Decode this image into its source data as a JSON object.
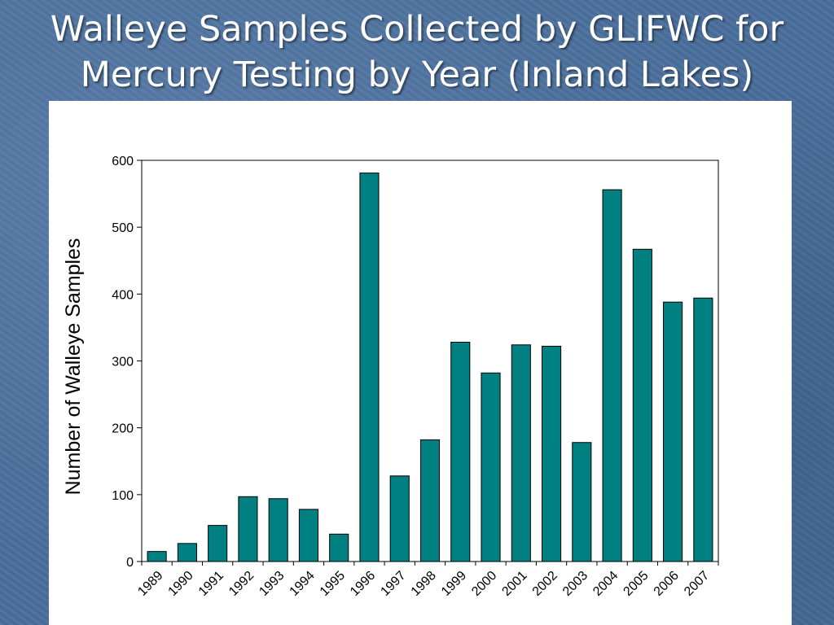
{
  "slide": {
    "title_line1": "Walleye Samples Collected by GLIFWC for",
    "title_line2": "Mercury Testing by Year (Inland Lakes)"
  },
  "chart_data": {
    "type": "bar",
    "title": "Walleye Samples Collected by GLIFWC for Mercury Testing by Year (Inland Lakes)",
    "xlabel": "",
    "ylabel": "Number of Walleye Samples",
    "categories": [
      "1989",
      "1990",
      "1991",
      "1992",
      "1993",
      "1994",
      "1995",
      "1996",
      "1997",
      "1998",
      "1999",
      "2000",
      "2001",
      "2002",
      "2003",
      "2004",
      "2005",
      "2006",
      "2007"
    ],
    "values": [
      15,
      27,
      54,
      97,
      94,
      78,
      41,
      581,
      128,
      182,
      328,
      282,
      324,
      322,
      178,
      556,
      467,
      388,
      394
    ],
    "ylim": [
      0,
      600
    ],
    "yticks": [
      0,
      100,
      200,
      300,
      400,
      500,
      600
    ],
    "legend": "none",
    "grid": false,
    "bar_color": "#008080",
    "background_color": "#4a6f9c"
  }
}
